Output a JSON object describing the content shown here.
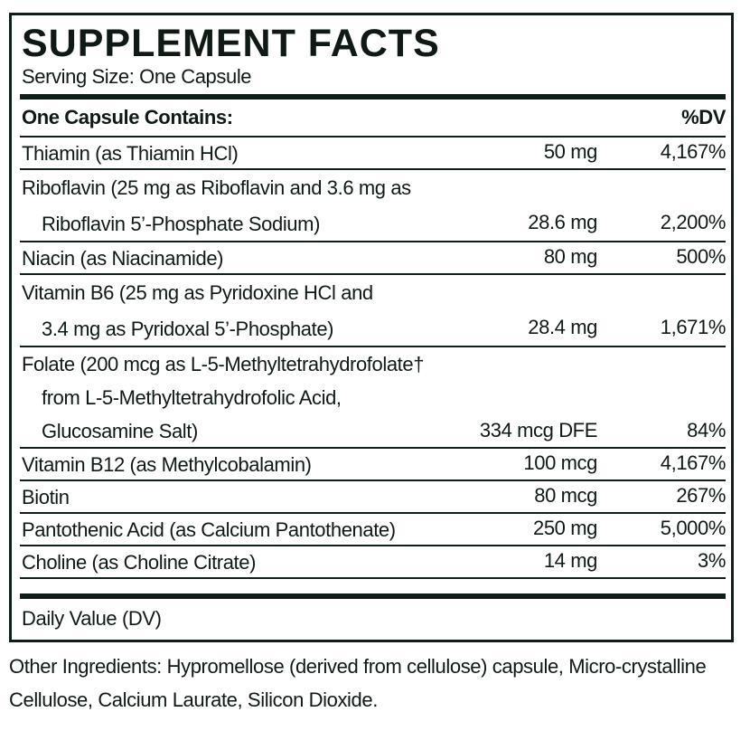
{
  "title": "SUPPLEMENT FACTS",
  "serving_size": "Serving Size: One Capsule",
  "header": {
    "contains": "One Capsule Contains:",
    "dv": "%DV"
  },
  "rows": [
    {
      "lines": [
        "Thiamin (as Thiamin HCl)"
      ],
      "amount": "50 mg",
      "dv": "4,167%"
    },
    {
      "lines": [
        "Riboflavin (25 mg as Riboflavin and 3.6 mg as",
        "Riboflavin 5’-Phosphate Sodium)"
      ],
      "amount": "28.6 mg",
      "dv": "2,200%"
    },
    {
      "lines": [
        "Niacin (as Niacinamide)"
      ],
      "amount": "80 mg",
      "dv": "500%"
    },
    {
      "lines": [
        "Vitamin B6 (25 mg as Pyridoxine HCl and",
        "3.4 mg as Pyridoxal 5’-Phosphate)"
      ],
      "amount": "28.4 mg",
      "dv": "1,671%"
    },
    {
      "lines": [
        "Folate (200 mcg as L-5-Methyltetrahydrofolate†",
        "from L-5-Methyltetrahydrofolic Acid,",
        "Glucosamine Salt)"
      ],
      "amount": "334 mcg DFE",
      "dv": "84%"
    },
    {
      "lines": [
        "Vitamin B12 (as Methylcobalamin)"
      ],
      "amount": "100 mcg",
      "dv": "4,167%"
    },
    {
      "lines": [
        "Biotin"
      ],
      "amount": "80 mcg",
      "dv": "267%"
    },
    {
      "lines": [
        "Pantothenic Acid (as Calcium Pantothenate)"
      ],
      "amount": "250 mg",
      "dv": "5,000%"
    },
    {
      "lines": [
        "Choline (as Choline Citrate)"
      ],
      "amount": "14 mg",
      "dv": "3%"
    }
  ],
  "footnote": "Daily Value (DV)",
  "other_ingredients": "Other Ingredients: Hypromellose (derived from cellulose) capsule, Micro-crystalline Cellulose, Calcium Laurate, Silicon Dioxide."
}
